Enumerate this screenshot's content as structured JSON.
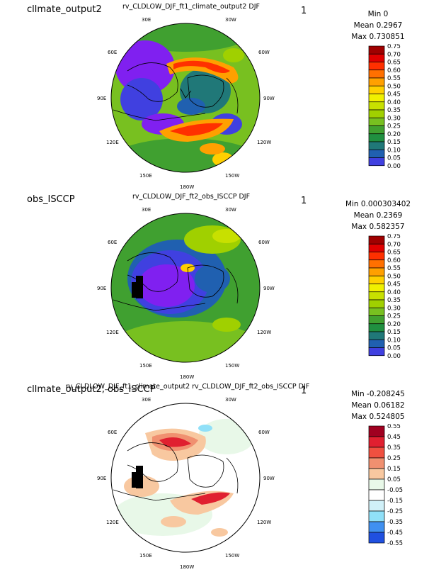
{
  "panels": [
    {
      "label": "cllmate_output2",
      "chart_title": "rv_CLDLOW_DJF_ft1_climate_output2  DJF",
      "panel_number": "1",
      "stats": {
        "min": "Min 0",
        "mean": "Mean 0.2967",
        "max": "Max 0.730851"
      },
      "colorbar_labels": [
        "0.75",
        "0.70",
        "0.65",
        "0.60",
        "0.55",
        "0.50",
        "0.45",
        "0.40",
        "0.35",
        "0.30",
        "0.25",
        "0.20",
        "0.15",
        "0.10",
        "0.05",
        "0.00"
      ],
      "colorbar_colors": [
        "#a00000",
        "#e00000",
        "#ff3000",
        "#ff7000",
        "#ffa000",
        "#ffd000",
        "#f0f000",
        "#c8e000",
        "#a0d000",
        "#78c020",
        "#40a030",
        "#209040",
        "#207878",
        "#2060b0",
        "#4040e0",
        "#8020f0"
      ]
    },
    {
      "label": "obs_ISCCP",
      "chart_title": "rv_CLDLOW_DJF_ft2_obs_ISCCP  DJF",
      "panel_number": "1",
      "stats": {
        "min": "Min 0.000303402",
        "mean": "Mean 0.2369",
        "max": "Max 0.582357"
      },
      "colorbar_labels": [
        "0.75",
        "0.70",
        "0.65",
        "0.60",
        "0.55",
        "0.50",
        "0.45",
        "0.40",
        "0.35",
        "0.30",
        "0.25",
        "0.20",
        "0.15",
        "0.10",
        "0.05",
        "0.00"
      ],
      "colorbar_colors": [
        "#a00000",
        "#e00000",
        "#ff3000",
        "#ff7000",
        "#ffa000",
        "#ffd000",
        "#f0f000",
        "#c8e000",
        "#a0d000",
        "#78c020",
        "#40a030",
        "#209040",
        "#207878",
        "#2060b0",
        "#4040e0",
        "#8020f0"
      ]
    },
    {
      "label": "cllmate_output2, obs_ISCCP",
      "chart_title": "rv_CLDLOW_DJF_ft1_climate_output2 rv_CLDLOW_DJF_ft2_obs_ISCCP  DJF",
      "panel_number": "1",
      "stats": {
        "min": "Min -0.208245",
        "mean": "Mean 0.06182",
        "max": "Max 0.524805"
      },
      "colorbar_labels": [
        "0.55",
        "0.45",
        "0.35",
        "0.25",
        "0.15",
        "0.05",
        "-0.05",
        "-0.15",
        "-0.25",
        "-0.35",
        "-0.45",
        "-0.55"
      ],
      "colorbar_colors": [
        "#a00020",
        "#e02030",
        "#f05040",
        "#f09070",
        "#f8c8a0",
        "#e8f8e8",
        "#ffffff",
        "#d0f0f8",
        "#90e0f8",
        "#4090f0",
        "#2050e0",
        "#1010c0"
      ]
    }
  ],
  "lon_labels": [
    "30E",
    "30W",
    "60E",
    "60W",
    "90E",
    "90W",
    "120E",
    "120W",
    "150E",
    "150W",
    "180W"
  ],
  "chart_data": [
    {
      "type": "heatmap",
      "projection": "north polar stereographic",
      "title": "rv_CLDLOW_DJF_ft1_climate_output2  DJF",
      "levels": [
        0.0,
        0.05,
        0.1,
        0.15,
        0.2,
        0.25,
        0.3,
        0.35,
        0.4,
        0.45,
        0.5,
        0.55,
        0.6,
        0.65,
        0.7,
        0.75
      ],
      "min": 0,
      "mean": 0.2967,
      "max": 0.730851
    },
    {
      "type": "heatmap",
      "projection": "north polar stereographic",
      "title": "rv_CLDLOW_DJF_ft2_obs_ISCCP  DJF",
      "levels": [
        0.0,
        0.05,
        0.1,
        0.15,
        0.2,
        0.25,
        0.3,
        0.35,
        0.4,
        0.45,
        0.5,
        0.55,
        0.6,
        0.65,
        0.7,
        0.75
      ],
      "min": 0.000303402,
      "mean": 0.2369,
      "max": 0.582357
    },
    {
      "type": "heatmap",
      "projection": "north polar stereographic",
      "title": "rv_CLDLOW_DJF_ft1_climate_output2 rv_CLDLOW_DJF_ft2_obs_ISCCP  DJF",
      "levels": [
        -0.55,
        -0.45,
        -0.35,
        -0.25,
        -0.15,
        -0.05,
        0.05,
        0.15,
        0.25,
        0.35,
        0.45,
        0.55
      ],
      "min": -0.208245,
      "mean": 0.06182,
      "max": 0.524805
    }
  ]
}
